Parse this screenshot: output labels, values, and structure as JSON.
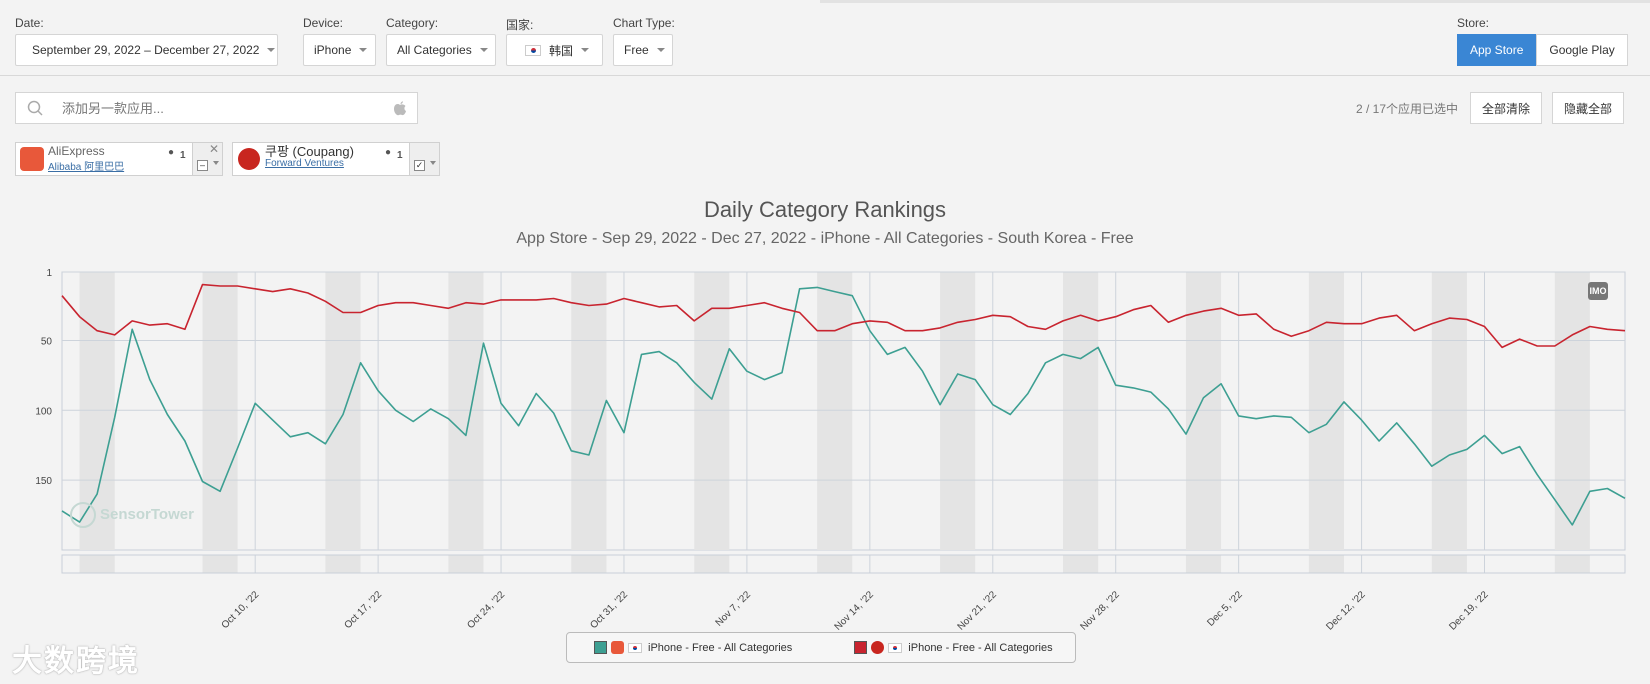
{
  "filters": {
    "date_label": "Date:",
    "date_value": "September 29, 2022 – December 27, 2022",
    "device_label": "Device:",
    "device_value": "iPhone",
    "category_label": "Category:",
    "category_value": "All Categories",
    "country_label": "国家:",
    "country_value": "韩国",
    "charttype_label": "Chart Type:",
    "charttype_value": "Free",
    "store_label": "Store:",
    "store_options": [
      "App Store",
      "Google Play"
    ]
  },
  "search": {
    "placeholder": "添加另一款应用..."
  },
  "selection": {
    "count_text": "2 / 17个应用已选中",
    "clear_all": "全部清除",
    "hide_all": "隐藏全部"
  },
  "apps": [
    {
      "name": "AliExpress",
      "publisher": "Alibaba 阿里巴巴",
      "badge": "1",
      "color": "#e8583a",
      "checkbox": "–"
    },
    {
      "name": "쿠팡 (Coupang)",
      "publisher": "Forward Ventures",
      "badge": "1",
      "color": "#c8261f",
      "checkbox": "✓"
    }
  ],
  "chart_header": {
    "title": "Daily Category Rankings",
    "subtitle": "App Store - Sep 29, 2022 - Dec 27, 2022 - iPhone - All Categories - South Korea - Free"
  },
  "watermarks": {
    "sensortower": "SensorTower",
    "imo": "IMO",
    "brand": "大数跨境"
  },
  "chart_data": {
    "type": "line",
    "y_reversed": true,
    "ylim": [
      1,
      200
    ],
    "yticks": [
      1,
      50,
      100,
      150
    ],
    "x_start_day": 0,
    "x_end_day": 89,
    "x_tick_days": [
      11,
      18,
      25,
      32,
      39,
      46,
      53,
      60,
      67,
      74,
      81
    ],
    "x_tick_labels": [
      "Oct 10, '22",
      "Oct 17, '22",
      "Oct 24, '22",
      "Oct 31, '22",
      "Nov 7, '22",
      "Nov 14, '22",
      "Nov 21, '22",
      "Nov 28, '22",
      "Dec 5, '22",
      "Dec 12, '22",
      "Dec 19, '22"
    ],
    "weekend_start_days": [
      1,
      8,
      15,
      22,
      29,
      36,
      43,
      50,
      57,
      64,
      71,
      78,
      85
    ],
    "series": [
      {
        "name": "iPhone - Free - All Categories",
        "app": "AliExpress",
        "color": "#3d9f92",
        "values": [
          172,
          180,
          160,
          105,
          42,
          78,
          103,
          122,
          151,
          158,
          127,
          95,
          107,
          119,
          116,
          124,
          103,
          66,
          86,
          100,
          108,
          99,
          106,
          118,
          52,
          95,
          111,
          88,
          102,
          129,
          132,
          93,
          116,
          60,
          58,
          66,
          80,
          92,
          56,
          72,
          78,
          73,
          13,
          12,
          15,
          18,
          43,
          60,
          55,
          72,
          96,
          74,
          78,
          96,
          103,
          88,
          66,
          60,
          63,
          55,
          82,
          84,
          87,
          99,
          117,
          91,
          81,
          104,
          106,
          104,
          105,
          116,
          110,
          94,
          107,
          122,
          109,
          124,
          140,
          132,
          128,
          118,
          131,
          126,
          146,
          164,
          182,
          158,
          156,
          163
        ]
      },
      {
        "name": "iPhone - Free - All Categories",
        "app": "쿠팡 (Coupang)",
        "color": "#c8242f",
        "values": [
          18,
          33,
          43,
          46,
          36,
          39,
          38,
          42,
          10,
          11,
          11,
          13,
          15,
          13,
          16,
          22,
          30,
          30,
          25,
          23,
          23,
          25,
          27,
          23,
          24,
          21,
          21,
          21,
          20,
          23,
          25,
          24,
          20,
          23,
          26,
          25,
          36,
          27,
          27,
          25,
          23,
          27,
          30,
          43,
          43,
          38,
          36,
          37,
          43,
          43,
          41,
          37,
          35,
          32,
          33,
          40,
          42,
          36,
          32,
          36,
          33,
          28,
          25,
          37,
          32,
          29,
          27,
          32,
          31,
          42,
          47,
          43,
          37,
          38,
          38,
          34,
          32,
          43,
          38,
          34,
          35,
          40,
          55,
          49,
          54,
          54,
          46,
          40,
          42,
          43
        ]
      }
    ]
  }
}
